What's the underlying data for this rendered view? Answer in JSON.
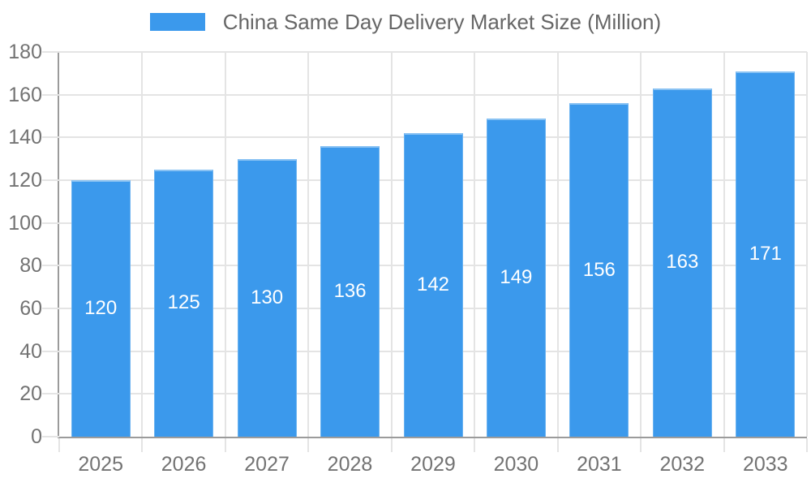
{
  "chart_data": {
    "type": "bar",
    "title": "China Same Day Delivery Market Size (Million)",
    "categories": [
      "2025",
      "2026",
      "2027",
      "2028",
      "2029",
      "2030",
      "2031",
      "2032",
      "2033"
    ],
    "values": [
      120,
      125,
      130,
      136,
      142,
      149,
      156,
      163,
      171
    ],
    "value_labels": [
      "120",
      "125",
      "130",
      "136",
      "142",
      "149",
      "156",
      "163",
      "171"
    ],
    "xlabel": "",
    "ylabel": "",
    "ylim": [
      0,
      180
    ],
    "yticks": [
      0,
      20,
      40,
      60,
      80,
      100,
      120,
      140,
      160,
      180
    ],
    "grid": true,
    "legend_position": "top",
    "colors": {
      "bar": "#3B99EC",
      "value_label": "#FFFFFF",
      "grid": "#E4E4E4",
      "axis_line": "#9B9B9B",
      "tick_text": "#737373",
      "legend_text": "#666666",
      "background": "#FFFFFF"
    }
  }
}
